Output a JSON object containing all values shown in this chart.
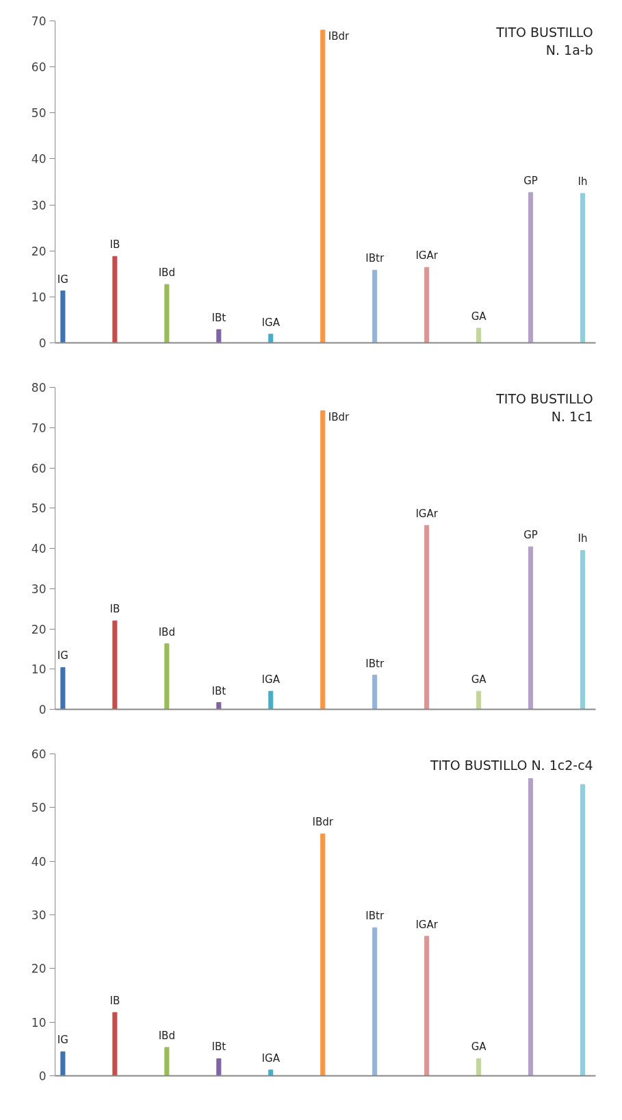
{
  "chart_data": [
    {
      "type": "bar",
      "title": "TITO BUSTILLO\nN. 1a-b",
      "categories": [
        "IG",
        "IB",
        "IBd",
        "IBt",
        "IGA",
        "IBdr",
        "IBtr",
        "IGAr",
        "GA",
        "GP",
        "Ih"
      ],
      "values": [
        11.3,
        18.8,
        12.7,
        2.9,
        1.9,
        68,
        15.8,
        16.4,
        3.2,
        32.7,
        32.5
      ],
      "colors": [
        "#3f72ae",
        "#c0504d",
        "#9bbb59",
        "#8064a2",
        "#4bacc6",
        "#f79646",
        "#95b3d7",
        "#da9694",
        "#c3d69b",
        "#b3a2c7",
        "#92cddc"
      ],
      "ylim": [
        0,
        70
      ],
      "yticks": [
        0,
        10,
        20,
        30,
        40,
        50,
        60,
        70
      ],
      "grid": false,
      "tick_labels": "y"
    },
    {
      "type": "bar",
      "title": "TITO BUSTILLO\nN. 1c1",
      "categories": [
        "IG",
        "IB",
        "IBd",
        "IBt",
        "IGA",
        "IBdr",
        "IBtr",
        "IGAr",
        "GA",
        "GP",
        "Ih"
      ],
      "values": [
        10.4,
        22,
        16.3,
        1.7,
        4.5,
        74.2,
        8.5,
        45.7,
        4.5,
        40.4,
        39.5
      ],
      "colors": [
        "#3f72ae",
        "#c0504d",
        "#9bbb59",
        "#8064a2",
        "#4bacc6",
        "#f79646",
        "#95b3d7",
        "#da9694",
        "#c3d69b",
        "#b3a2c7",
        "#92cddc"
      ],
      "ylim": [
        0,
        80
      ],
      "yticks": [
        0,
        10,
        20,
        30,
        40,
        50,
        60,
        70,
        80
      ],
      "grid": false,
      "tick_labels": "y"
    },
    {
      "type": "bar",
      "title": "TITO BUSTILLO N. 1c2-c4",
      "categories": [
        "IG",
        "IB",
        "IBd",
        "IBt",
        "IGA",
        "IBdr",
        "IBtr",
        "IGAr",
        "GA",
        null,
        null
      ],
      "values": [
        4.5,
        11.8,
        5.3,
        3.2,
        1.1,
        45.1,
        27.6,
        26,
        3.2,
        55.4,
        54.3
      ],
      "colors": [
        "#3f72ae",
        "#c0504d",
        "#9bbb59",
        "#8064a2",
        "#4bacc6",
        "#f79646",
        "#95b3d7",
        "#da9694",
        "#c3d69b",
        "#b3a2c7",
        "#92cddc"
      ],
      "ylim": [
        0,
        60
      ],
      "yticks": [
        0,
        10,
        20,
        30,
        40,
        50,
        60
      ],
      "grid": false,
      "tick_labels": "y"
    }
  ]
}
